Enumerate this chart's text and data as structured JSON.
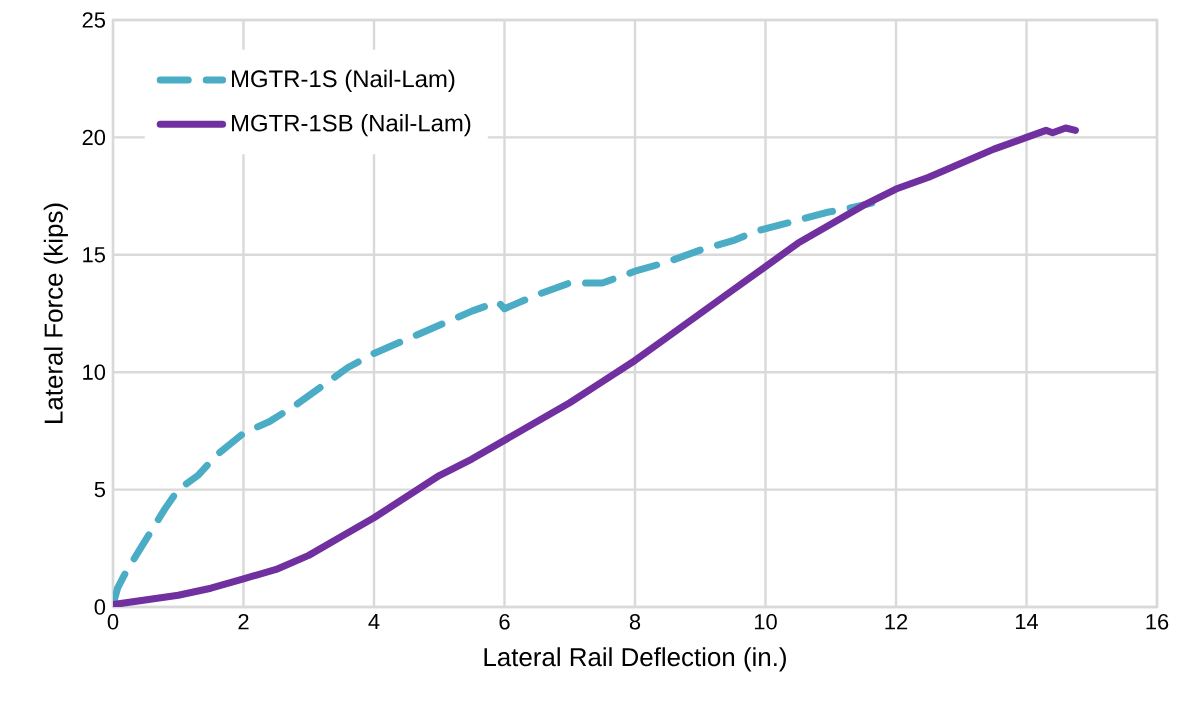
{
  "chart_data": {
    "type": "line",
    "xlabel": "Lateral Rail Deflection (in.)",
    "ylabel": "Lateral Force (kips)",
    "xlim": [
      0,
      16
    ],
    "ylim": [
      0,
      25
    ],
    "xticks": [
      0,
      2,
      4,
      6,
      8,
      10,
      12,
      14,
      16
    ],
    "yticks": [
      0,
      5,
      10,
      15,
      20,
      25
    ],
    "grid": true,
    "legend": "top left",
    "marker": "none",
    "series": [
      {
        "name": "MGTR-1S (Nail-Lam)",
        "color": "#4bacc6",
        "line_style": "dashed",
        "x": [
          0.02,
          0.07,
          0.2,
          0.4,
          0.6,
          0.8,
          1.0,
          1.3,
          1.6,
          2.0,
          2.4,
          2.8,
          3.2,
          3.6,
          4.0,
          4.5,
          5.0,
          5.5,
          5.9,
          6.0,
          6.5,
          7.0,
          7.5,
          8.0,
          8.5,
          9.0,
          9.5,
          9.85,
          10.4,
          10.93,
          11.3,
          11.63
        ],
        "values": [
          0.3,
          0.8,
          1.5,
          2.4,
          3.3,
          4.2,
          5.0,
          5.6,
          6.5,
          7.4,
          7.9,
          8.6,
          9.4,
          10.2,
          10.8,
          11.4,
          12.0,
          12.6,
          13.0,
          12.7,
          13.3,
          13.8,
          13.8,
          14.3,
          14.7,
          15.2,
          15.6,
          16.0,
          16.4,
          16.8,
          17.0,
          17.2
        ]
      },
      {
        "name": "MGTR-1SB (Nail-Lam)",
        "color": "#7030a0",
        "line_style": "solid",
        "x": [
          0,
          0.5,
          1,
          1.5,
          2,
          2.5,
          3,
          3.5,
          4,
          4.5,
          5,
          5.5,
          6,
          6.5,
          7,
          7.5,
          8,
          8.5,
          9,
          9.5,
          10,
          10.5,
          11,
          11.5,
          12,
          12.5,
          13,
          13.5,
          14,
          14.3,
          14.4,
          14.6,
          14.75
        ],
        "values": [
          0.1,
          0.3,
          0.5,
          0.8,
          1.2,
          1.6,
          2.2,
          3.0,
          3.8,
          4.7,
          5.6,
          6.3,
          7.1,
          7.9,
          8.7,
          9.6,
          10.5,
          11.5,
          12.5,
          13.5,
          14.5,
          15.5,
          16.3,
          17.1,
          17.8,
          18.3,
          18.9,
          19.5,
          20.0,
          20.3,
          20.2,
          20.4,
          20.3
        ]
      }
    ]
  }
}
